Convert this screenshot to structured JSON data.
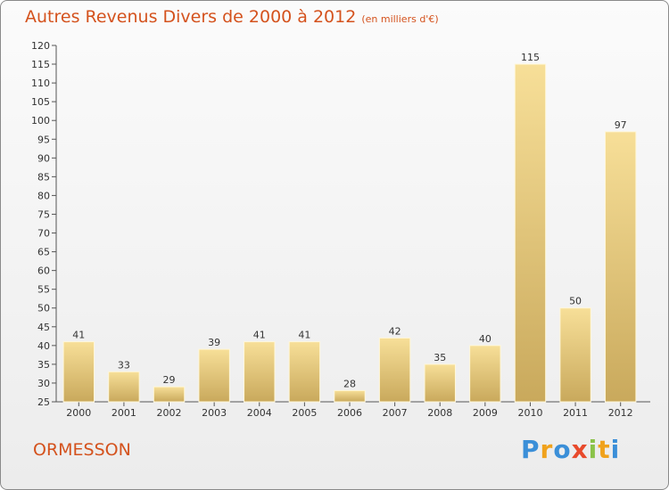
{
  "chart_data": {
    "type": "bar",
    "title": "Autres Revenus Divers de 2000 à 2012",
    "subtitle": "(en milliers d'€)",
    "categories": [
      "2000",
      "2001",
      "2002",
      "2003",
      "2004",
      "2005",
      "2006",
      "2007",
      "2008",
      "2009",
      "2010",
      "2011",
      "2012"
    ],
    "values": [
      41,
      33,
      29,
      39,
      41,
      41,
      28,
      42,
      35,
      40,
      115,
      50,
      97
    ],
    "ylim": [
      25,
      120
    ],
    "yticks": [
      25,
      30,
      35,
      40,
      45,
      50,
      55,
      60,
      65,
      70,
      75,
      80,
      85,
      90,
      95,
      100,
      105,
      110,
      115,
      120
    ],
    "grid": false,
    "bar_color": "#e8c97a"
  },
  "footer": {
    "place": "ORMESSON"
  },
  "brand": {
    "letters": [
      "P",
      "r",
      "o",
      "x",
      "i",
      "t",
      "i"
    ],
    "colors": [
      "#3b8fd8",
      "#f0a21c",
      "#3b8fd8",
      "#e84a2c",
      "#8bc34a",
      "#f0a21c",
      "#3b8fd8"
    ]
  }
}
